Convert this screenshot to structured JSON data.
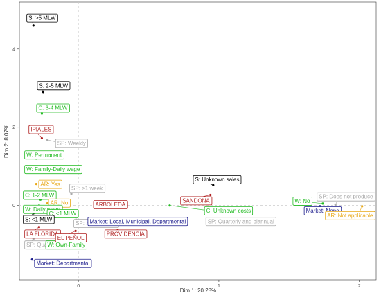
{
  "chart_data": {
    "type": "scatter",
    "title": "",
    "xlabel": "Dim 1: 20.28%",
    "ylabel": "Dim 2: 8.07%",
    "xlim": [
      -0.42,
      2.12
    ],
    "ylim": [
      -1.9,
      5.2
    ],
    "x_ticks": [
      0,
      1,
      2
    ],
    "y_ticks": [
      0,
      2,
      4
    ],
    "grid": false,
    "reference_lines": {
      "x": 0,
      "y": 0,
      "style": "dashed"
    },
    "legend": "none",
    "colors": {
      "S": "#000000",
      "C": "#22bb22",
      "W": "#22bb22",
      "AR": "#e8a817",
      "SP": "#aaaaaa",
      "Market": "#1a1a8c",
      "Municipality": "#b02020"
    },
    "points": [
      {
        "x": -0.32,
        "y": 4.6,
        "label": "S: >5 MLW",
        "group": "S",
        "lx": -0.355,
        "ly": 4.8
      },
      {
        "x": -0.25,
        "y": 2.9,
        "label": "S: 2-5 MLW",
        "group": "S",
        "lx": -0.28,
        "ly": 3.07
      },
      {
        "x": -0.26,
        "y": 2.35,
        "label": "C: 3-4 MLW",
        "group": "C",
        "lx": -0.285,
        "ly": 2.5
      },
      {
        "x": -0.26,
        "y": 1.72,
        "label": "IPIALES",
        "group": "Municipality",
        "lx": -0.34,
        "ly": 1.95
      },
      {
        "x": -0.22,
        "y": 1.68,
        "label": "SP: Weekly",
        "group": "SP",
        "lx": -0.15,
        "ly": 1.6
      },
      {
        "x": -0.3,
        "y": 1.2,
        "label": "W: Permanent",
        "group": "W",
        "lx": -0.37,
        "ly": 1.3
      },
      {
        "x": -0.3,
        "y": 0.97,
        "label": "W: Family-Daily wage",
        "group": "W",
        "lx": -0.37,
        "ly": 0.93
      },
      {
        "x": 0.96,
        "y": 0.52,
        "label": "S: Unknown sales",
        "group": "S",
        "lx": 0.83,
        "ly": 0.67
      },
      {
        "x": -0.3,
        "y": 0.55,
        "label": "AR: Yes",
        "group": "AR",
        "lx": -0.27,
        "ly": 0.55
      },
      {
        "x": -0.05,
        "y": 0.3,
        "label": "SP: >1 week",
        "group": "SP",
        "lx": -0.05,
        "ly": 0.45
      },
      {
        "x": 0.94,
        "y": 0.27,
        "label": "SANDONA",
        "group": "Municipality",
        "lx": 0.74,
        "ly": 0.13
      },
      {
        "x": -0.27,
        "y": 0.15,
        "label": "C: 1-2 MLW",
        "group": "C",
        "lx": -0.38,
        "ly": 0.27
      },
      {
        "x": -0.22,
        "y": 0.06,
        "label": "AR: No",
        "group": "AR",
        "lx": -0.2,
        "ly": 0.07
      },
      {
        "x": -0.28,
        "y": 0.0,
        "label": "W: Daily wage",
        "group": "W",
        "lx": -0.38,
        "ly": -0.09
      },
      {
        "x": -0.18,
        "y": -0.04,
        "label": "C: <1 MLW",
        "group": "C",
        "lx": -0.21,
        "ly": -0.2
      },
      {
        "x": 0.22,
        "y": -0.05,
        "label": "ARBOLEDA",
        "group": "Municipality",
        "lx": 0.12,
        "ly": 0.03
      },
      {
        "x": 0.65,
        "y": 0.0,
        "label": "C: Unknown costs",
        "group": "C",
        "lx": 0.91,
        "ly": -0.13
      },
      {
        "x": 1.74,
        "y": 0.05,
        "label": "W: No",
        "group": "W",
        "lx": 1.54,
        "ly": 0.12
      },
      {
        "x": 1.83,
        "y": 0.02,
        "label": "SP: Does not produce",
        "group": "SP",
        "lx": 1.84,
        "ly": 0.23
      },
      {
        "x": 1.72,
        "y": -0.02,
        "label": "Market: None",
        "group": "Market",
        "lx": 1.62,
        "ly": -0.13
      },
      {
        "x": 2.02,
        "y": -0.02,
        "label": "AR: Not applicable",
        "group": "AR",
        "lx": 1.97,
        "ly": -0.25
      },
      {
        "x": -0.32,
        "y": -0.2,
        "label": "S: <1 MLW",
        "group": "S",
        "lx": -0.38,
        "ly": -0.35
      },
      {
        "x": -0.02,
        "y": -0.3,
        "label": "SP: >1 semester",
        "group": "SP",
        "lx": -0.02,
        "ly": -0.45
      },
      {
        "x": 0.1,
        "y": -0.4,
        "label": "Market: Local, Municipal, Departmental",
        "group": "Market",
        "lx": 0.08,
        "ly": -0.4
      },
      {
        "x": 0.93,
        "y": -0.37,
        "label": "SP: Quarterly and biannual",
        "group": "SP",
        "lx": 0.92,
        "ly": -0.4
      },
      {
        "x": -0.28,
        "y": -0.55,
        "label": "LA FLORIDA",
        "group": "Municipality",
        "lx": -0.37,
        "ly": -0.72
      },
      {
        "x": 0.28,
        "y": -0.63,
        "label": "PROVIDENCIA",
        "group": "Municipality",
        "lx": 0.2,
        "ly": -0.72
      },
      {
        "x": -0.32,
        "y": -0.85,
        "label": "SP: Quarterly",
        "group": "SP",
        "lx": -0.37,
        "ly": -1.0
      },
      {
        "x": -0.33,
        "y": -1.38,
        "label": "Market: Departmental",
        "group": "Market",
        "lx": -0.3,
        "ly": -1.47
      },
      {
        "x": -0.28,
        "y": -1.0,
        "label": "W: Own-Family",
        "group": "W",
        "lx": -0.22,
        "ly": -1.0
      },
      {
        "x": -0.02,
        "y": -0.65,
        "label": "EL PEÑOL",
        "group": "Municipality",
        "lx": -0.15,
        "ly": -0.82
      }
    ]
  }
}
